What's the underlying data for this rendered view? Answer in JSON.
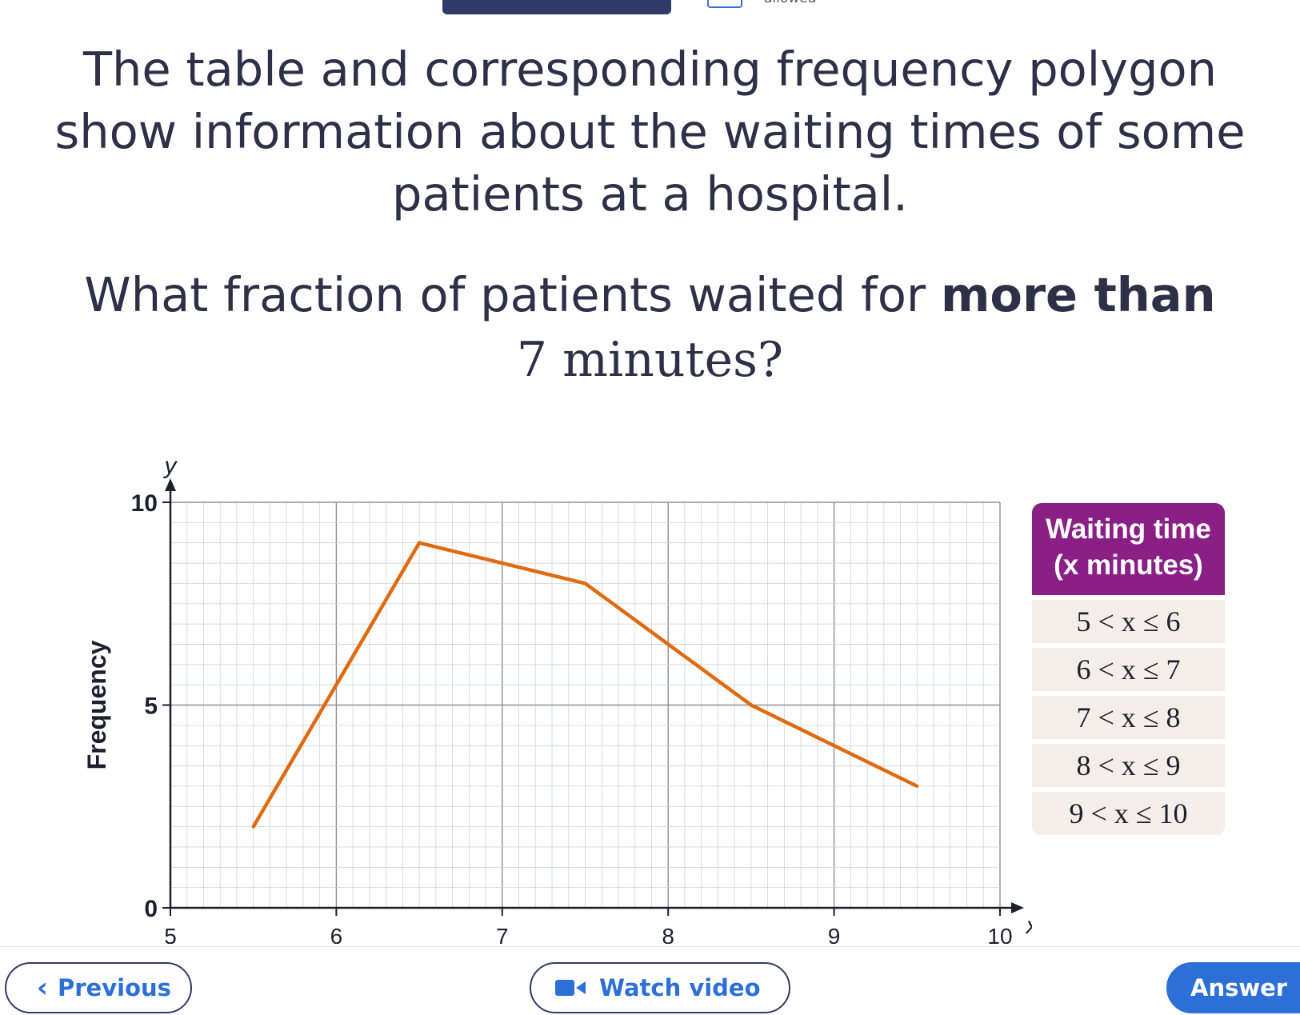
{
  "header": {
    "status_text": "allowed"
  },
  "question": {
    "line1": "The table and corresponding frequency polygon show information about the waiting times of some patients at a hospital.",
    "line2_prefix": "What fraction of patients waited for ",
    "line2_bold": "more than",
    "line3": "7 minutes?"
  },
  "chart_data": {
    "type": "line",
    "title": "",
    "xlabel": "x",
    "ylabel": "y",
    "y_axis_title": "Frequency",
    "xlim": [
      5,
      10
    ],
    "ylim": [
      0,
      10
    ],
    "x_ticks": [
      "5",
      "6",
      "7",
      "8",
      "9",
      "10"
    ],
    "y_ticks": [
      "0",
      "5",
      "10"
    ],
    "grid": true,
    "series": [
      {
        "color": "#e06a10",
        "x": [
          5.5,
          6.5,
          7.5,
          8.5,
          9.5
        ],
        "y": [
          2,
          9,
          8,
          5,
          3
        ]
      }
    ]
  },
  "table": {
    "header": [
      "Waiting time",
      "(x minutes)"
    ],
    "rows": [
      "5 < x ≤ 6",
      "6 < x ≤ 7",
      "7 < x ≤ 8",
      "8 < x ≤ 9",
      "9 < x ≤ 10"
    ]
  },
  "nav": {
    "previous_label": "Previous",
    "video_label": "Watch video",
    "answer_label": "Answer"
  },
  "colors": {
    "accent": "#2c6fd6",
    "table_header": "#8a1f86",
    "line": "#e06a10"
  }
}
